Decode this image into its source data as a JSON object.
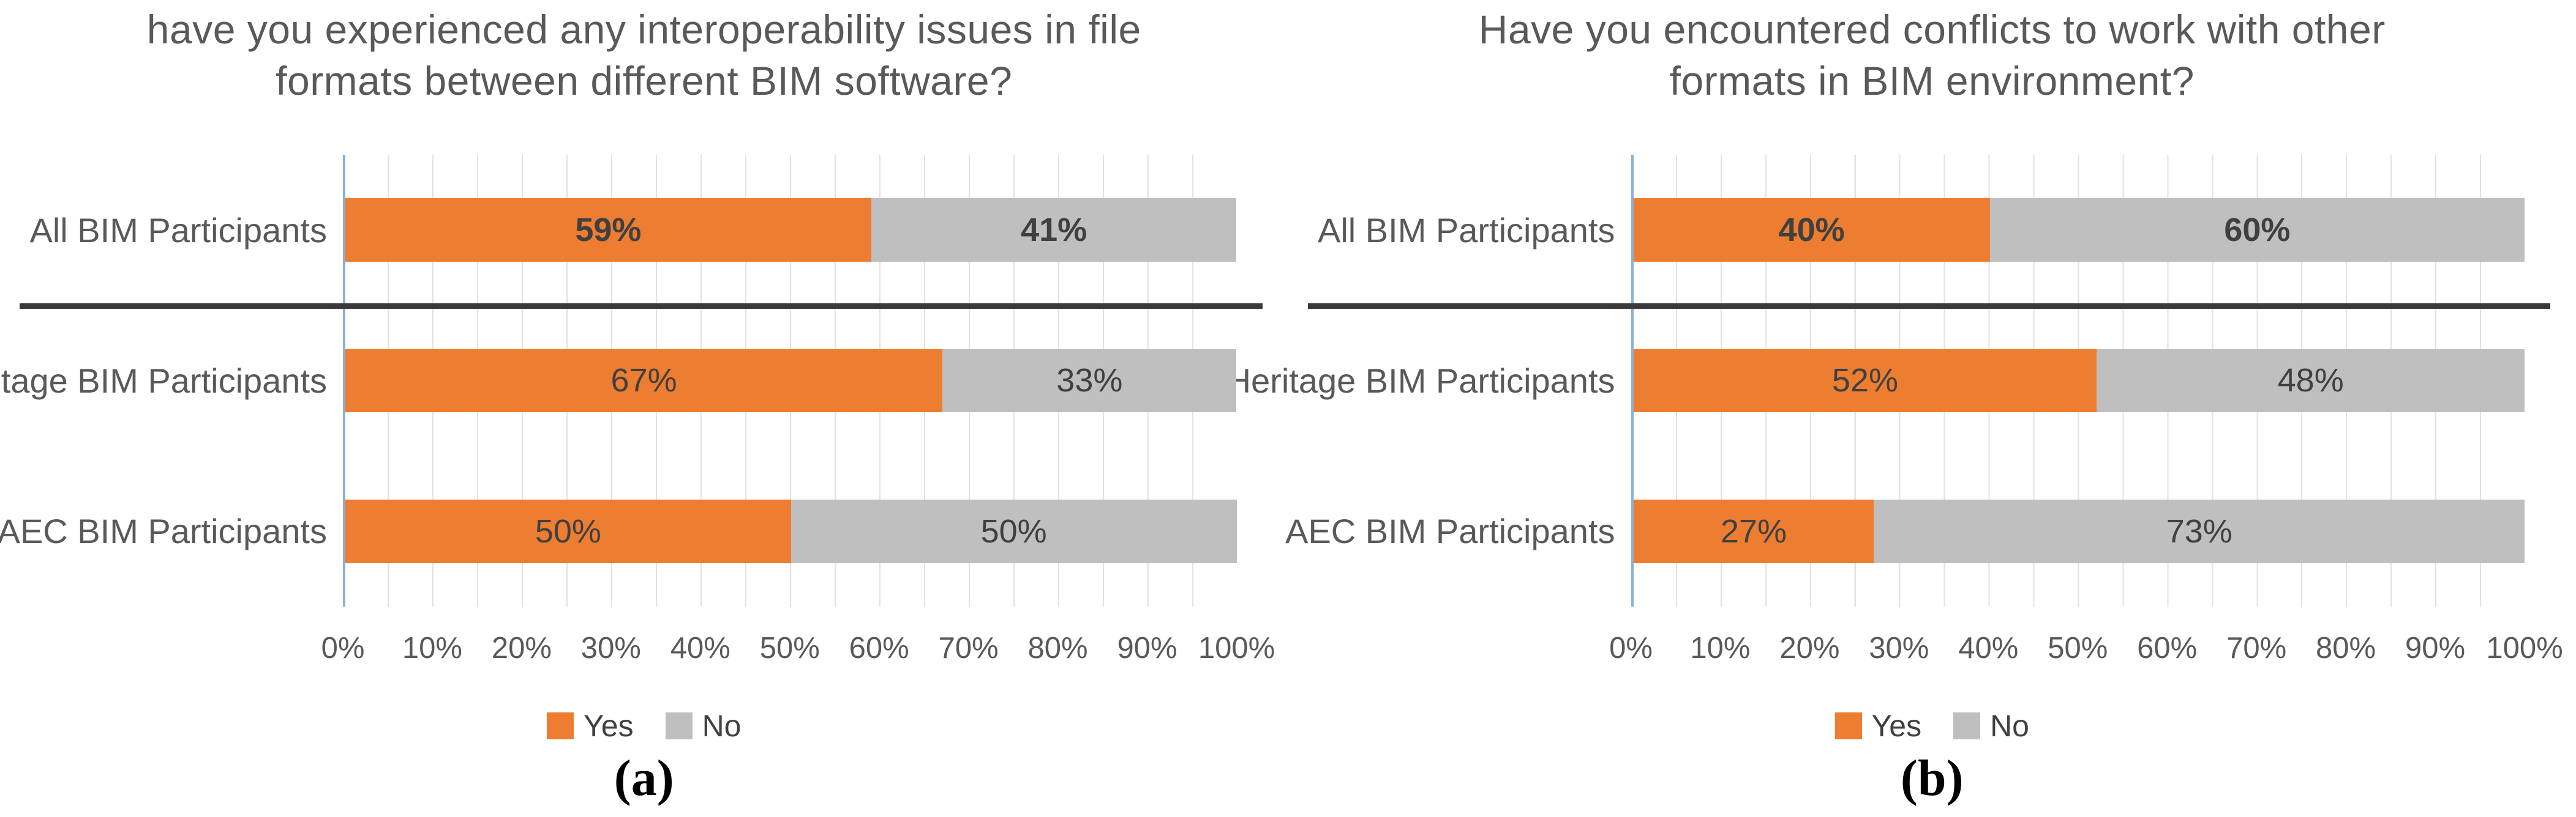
{
  "figure": {
    "background": "#FFFFFF",
    "text_color": "#595959",
    "value_label_color": "#404040",
    "gridline_color": "#E2E2E2"
  },
  "chart_data": [
    {
      "type": "bar",
      "orientation": "horizontal",
      "stacked": true,
      "title": "have you experienced any interoperability issues in file formats between different BIM software?",
      "title_lines": [
        "have you experienced any interoperability issues in file",
        "formats between different BIM software?"
      ],
      "categories": [
        "All BIM Participants",
        "Heritage BIM Participants",
        "AEC BIM Participants"
      ],
      "series": [
        {
          "name": "Yes",
          "color": "#ED7D31",
          "values": [
            59,
            67,
            50
          ]
        },
        {
          "name": "No",
          "color": "#BFBFBF",
          "values": [
            41,
            33,
            50
          ]
        }
      ],
      "value_suffix": "%",
      "xlim": [
        0,
        100
      ],
      "x_ticks": [
        "0%",
        "10%",
        "20%",
        "30%",
        "40%",
        "50%",
        "60%",
        "70%",
        "80%",
        "90%",
        "100%"
      ],
      "grid": {
        "minor_interval_pct": 5,
        "on": true
      },
      "axis_line_color": "#8AB1D8",
      "separator": {
        "after_row": 0,
        "color": "#3A3A3A"
      },
      "bold_value_row": 0,
      "legend": {
        "position": "bottom",
        "entries": [
          "Yes",
          "No"
        ]
      },
      "sublabel": "(a)"
    },
    {
      "type": "bar",
      "orientation": "horizontal",
      "stacked": true,
      "title": "Have you encountered conflicts to work with other formats in BIM environment?",
      "title_lines": [
        "Have you encountered conflicts to work with other",
        "formats in BIM environment?"
      ],
      "categories": [
        "All BIM Participants",
        "Heritage BIM Participants",
        "AEC BIM Participants"
      ],
      "series": [
        {
          "name": "Yes",
          "color": "#ED7D31",
          "values": [
            40,
            52,
            27
          ]
        },
        {
          "name": "No",
          "color": "#BFBFBF",
          "values": [
            60,
            48,
            73
          ]
        }
      ],
      "value_suffix": "%",
      "xlim": [
        0,
        100
      ],
      "x_ticks": [
        "0%",
        "10%",
        "20%",
        "30%",
        "40%",
        "50%",
        "60%",
        "70%",
        "80%",
        "90%",
        "100%"
      ],
      "grid": {
        "minor_interval_pct": 5,
        "on": true
      },
      "axis_line_color": "#8AB1D8",
      "separator": {
        "after_row": 0,
        "color": "#3A3A3A"
      },
      "bold_value_row": 0,
      "legend": {
        "position": "bottom",
        "entries": [
          "Yes",
          "No"
        ]
      },
      "sublabel": "(b)"
    }
  ]
}
